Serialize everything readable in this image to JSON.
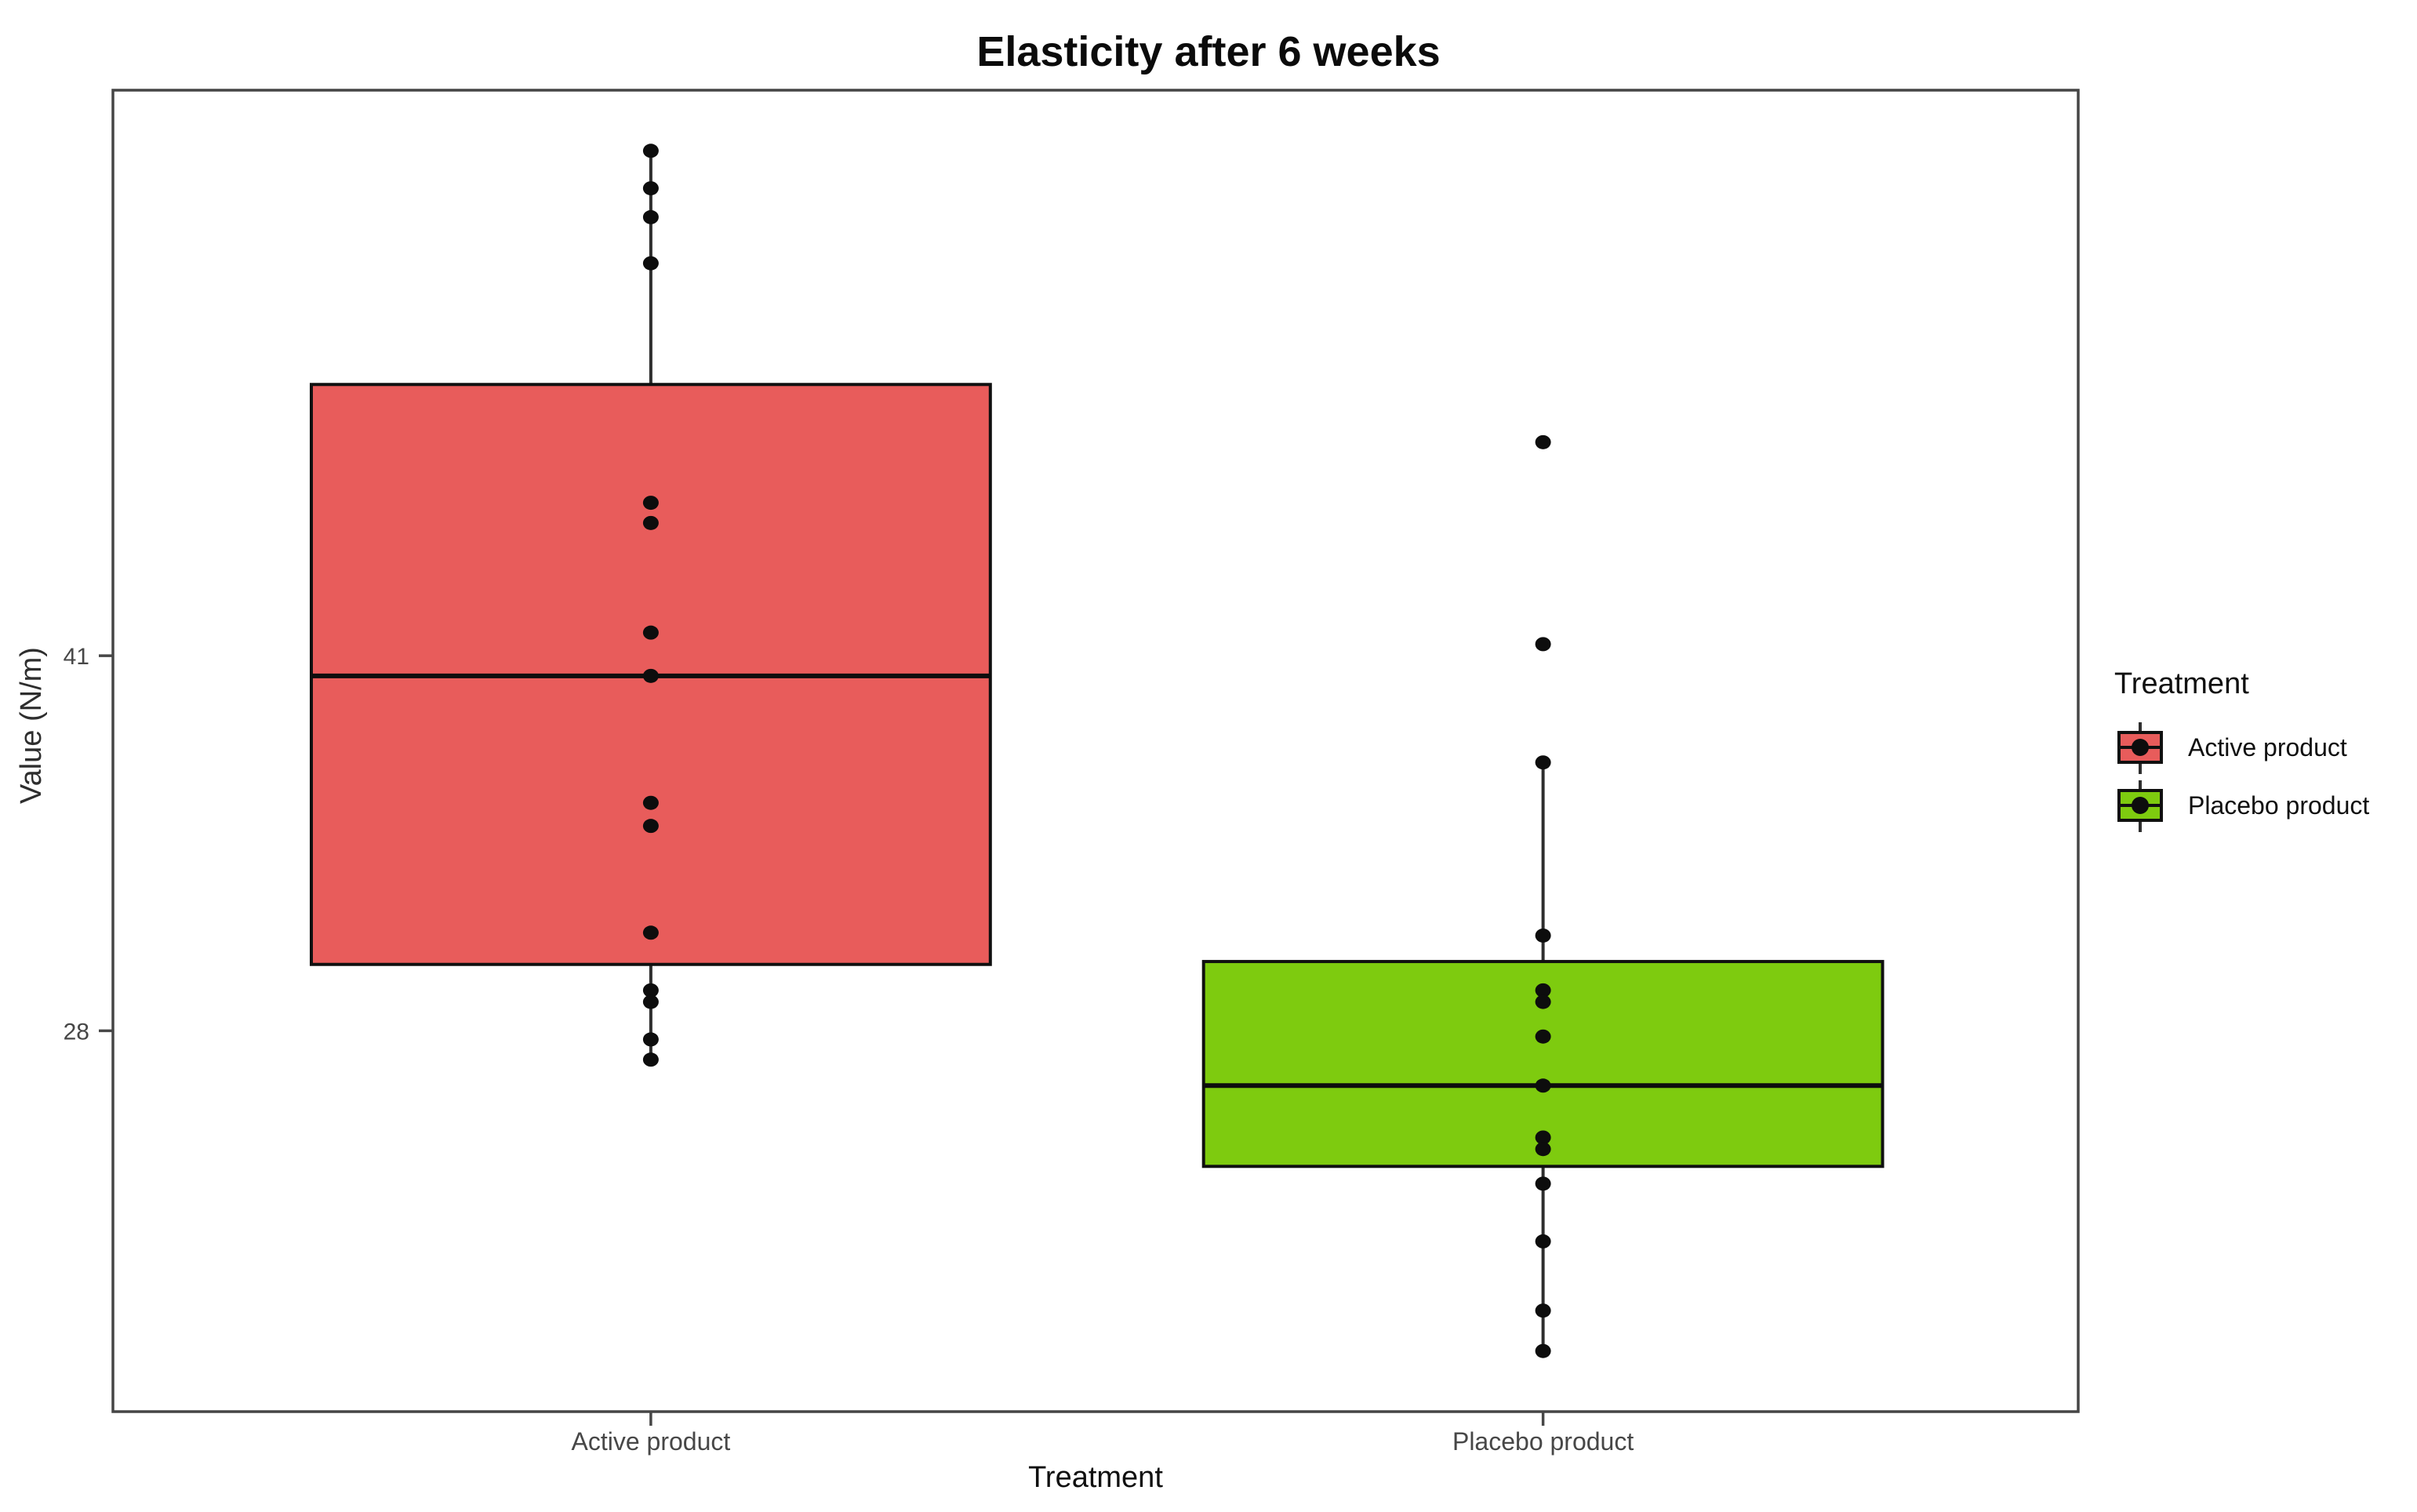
{
  "figure": {
    "title": "Elasticity after 6 weeks"
  },
  "legend": {
    "title": "Treatment",
    "items": [
      {
        "label": "Active product",
        "color": "#E85C5B"
      },
      {
        "label": "Placebo product",
        "color": "#7ECB0F"
      }
    ]
  },
  "chart_data": {
    "type": "boxplot",
    "title": "Elasticity after 6 weeks",
    "xlabel": "Treatment",
    "ylabel": "Value (N/m)",
    "ylim": [
      14.8,
      60.6
    ],
    "grid": false,
    "legend_position": "right",
    "yticks": [
      {
        "value": 41,
        "label": "41"
      },
      {
        "value": 28,
        "label": "28"
      }
    ],
    "categories": [
      "Active product",
      "Placebo product"
    ],
    "box_width_frac": 0.3455,
    "series": [
      {
        "name": "Active product",
        "color": "#E85C5B",
        "x_frac": 0.2737,
        "box": {
          "whisker_low": 27.0,
          "q1": 30.3,
          "median": 40.3,
          "q3": 50.4,
          "whisker_high": 58.5
        },
        "outliers": [],
        "points": [
          58.5,
          57.2,
          56.2,
          54.6,
          46.3,
          45.6,
          41.8,
          40.3,
          35.9,
          35.1,
          31.4,
          29.4,
          29.0,
          27.7,
          27.0
        ]
      },
      {
        "name": "Placebo product",
        "color": "#7ECB0F",
        "x_frac": 0.7277,
        "box": {
          "whisker_low": 16.9,
          "q1": 23.3,
          "median": 26.1,
          "q3": 30.4,
          "whisker_high": 37.3
        },
        "outliers": [
          48.4,
          41.4
        ],
        "points": [
          48.4,
          41.4,
          37.3,
          31.3,
          29.4,
          29.0,
          27.8,
          26.1,
          24.3,
          23.9,
          22.7,
          20.7,
          18.3,
          16.9
        ]
      }
    ],
    "style": {
      "panel_border_color": "#454545",
      "box_border_color": "#101010",
      "whisker_color": "#2e2e2e",
      "median_color": "#0d0d0d",
      "point_color": "#0d0d0d",
      "tick_label_color": "#474747"
    }
  }
}
